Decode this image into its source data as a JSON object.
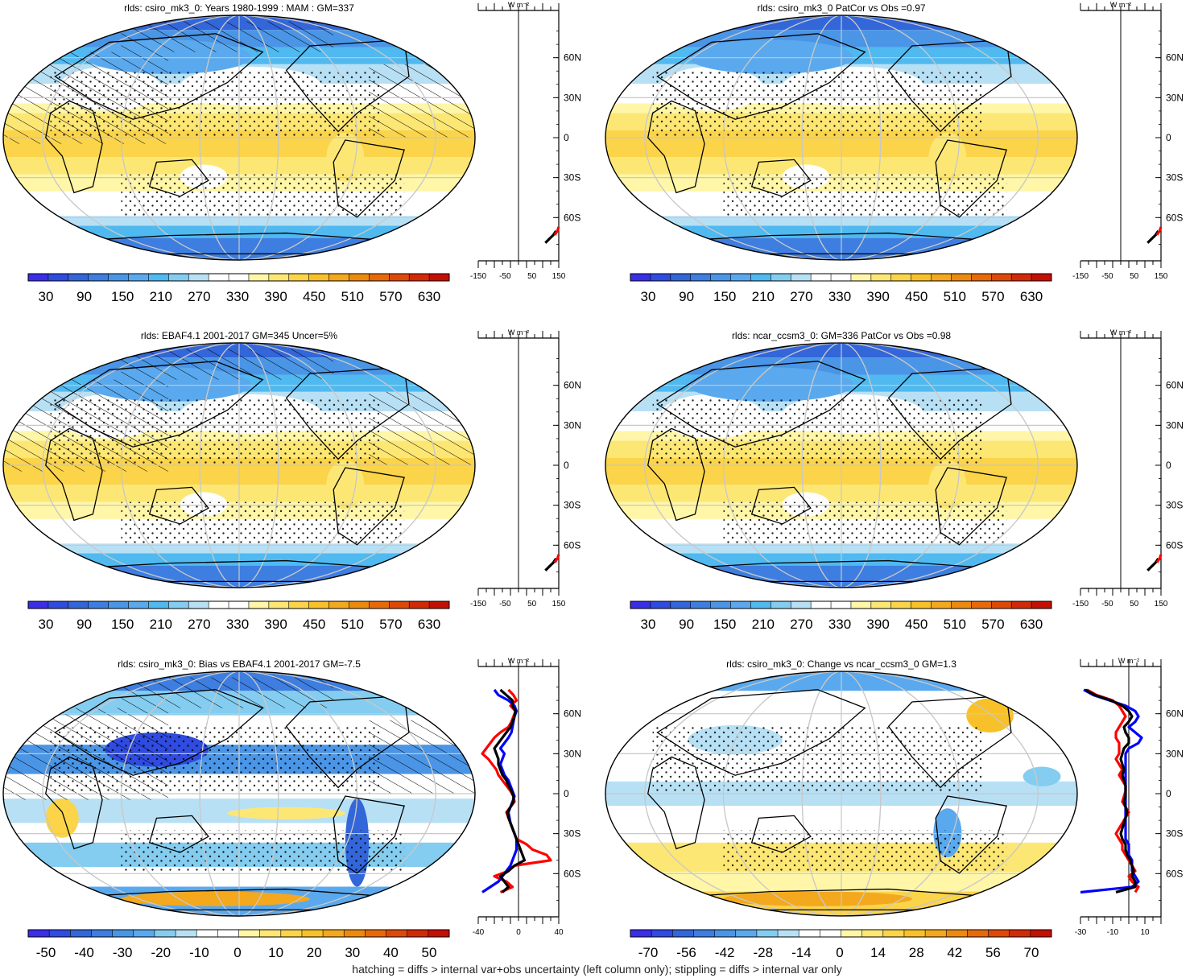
{
  "footer": "hatching = diffs > internal var+obs uncertainty (left column only); stippling = diffs > internal var only",
  "palettes": {
    "climatology": [
      "#3a2ee6",
      "#2f4be0",
      "#3366d9",
      "#3d7ee0",
      "#4a95e6",
      "#5aa9ee",
      "#4fb9f0",
      "#84cdf0",
      "#b8e0f5",
      "#ffffff",
      "#ffffff",
      "#fff6a8",
      "#fde774",
      "#fbd44a",
      "#f8c12a",
      "#f3a81d",
      "#ec8a10",
      "#e66a0a",
      "#dd4a08",
      "#d22a06",
      "#c41004"
    ],
    "difference": [
      "#3a2ee6",
      "#2f4be0",
      "#3366d9",
      "#3d7ee0",
      "#4a95e6",
      "#5aa9ee",
      "#84cdf0",
      "#b8e0f5",
      "#ffffff",
      "#ffffff",
      "#fff6a8",
      "#fde774",
      "#fbd44a",
      "#f8c12a",
      "#f3a81d",
      "#ec8a10",
      "#e66a0a",
      "#dd4a08",
      "#d22a06",
      "#c41004"
    ]
  },
  "chart_data": [
    {
      "type": "heatmap",
      "title": "rlds: csiro_mk3_0: Years 1980-1999 : MAM : GM=337",
      "colorbar_ticks": [
        "30",
        "90",
        "150",
        "210",
        "270",
        "330",
        "390",
        "450",
        "510",
        "570",
        "630"
      ],
      "palette": "climatology",
      "map_field": "climatology",
      "overlay": {
        "hatching": true,
        "stippling": true
      },
      "profile": {
        "unit_label": "W m⁻²",
        "x_ticks": [
          "-150",
          "-50",
          "50",
          "150"
        ],
        "xlim": [
          -150,
          150
        ],
        "lat_ticks": [
          "60N",
          "30N",
          "0",
          "30S",
          "60S"
        ],
        "lat_values": [
          60,
          30,
          0,
          -30,
          -60
        ],
        "series": [
          {
            "color": "#000000",
            "lat": [
              -79,
              -76,
              -73,
              -70
            ],
            "x": [
              100,
              115,
              130,
              140
            ]
          },
          {
            "color": "#ff0000",
            "lat": [
              -73,
              -70,
              -67
            ],
            "x": [
              135,
              145,
              150
            ]
          }
        ]
      }
    },
    {
      "type": "heatmap",
      "title": "rlds: csiro_mk3_0 PatCor vs Obs =0.97",
      "colorbar_ticks": [
        "30",
        "90",
        "150",
        "210",
        "270",
        "330",
        "390",
        "450",
        "510",
        "570",
        "630"
      ],
      "palette": "climatology",
      "map_field": "climatology",
      "overlay": {
        "hatching": false,
        "stippling": true
      },
      "profile": {
        "unit_label": "W m⁻²",
        "x_ticks": [
          "-150",
          "-50",
          "50",
          "150"
        ],
        "xlim": [
          -150,
          150
        ],
        "lat_ticks": [
          "60N",
          "30N",
          "0",
          "30S",
          "60S"
        ],
        "lat_values": [
          60,
          30,
          0,
          -30,
          -60
        ],
        "series": [
          {
            "color": "#000000",
            "lat": [
              -79,
              -76,
              -73,
              -70
            ],
            "x": [
              100,
              115,
              130,
              140
            ]
          },
          {
            "color": "#ff0000",
            "lat": [
              -73,
              -70,
              -67
            ],
            "x": [
              135,
              145,
              150
            ]
          }
        ]
      }
    },
    {
      "type": "heatmap",
      "title": "rlds: EBAF4.1 2001-2017 GM=345 Uncer=5%",
      "colorbar_ticks": [
        "30",
        "90",
        "150",
        "210",
        "270",
        "330",
        "390",
        "450",
        "510",
        "570",
        "630"
      ],
      "palette": "climatology",
      "map_field": "climatology",
      "overlay": {
        "hatching": true,
        "stippling": true
      },
      "profile": {
        "unit_label": "W m⁻²",
        "x_ticks": [
          "-150",
          "-50",
          "50",
          "150"
        ],
        "xlim": [
          -150,
          150
        ],
        "lat_ticks": [
          "60N",
          "30N",
          "0",
          "30S",
          "60S"
        ],
        "lat_values": [
          60,
          30,
          0,
          -30,
          -60
        ],
        "series": [
          {
            "color": "#000000",
            "lat": [
              -79,
              -76,
              -73,
              -70
            ],
            "x": [
              100,
              115,
              130,
              140
            ]
          },
          {
            "color": "#ff0000",
            "lat": [
              -73,
              -70,
              -67
            ],
            "x": [
              135,
              145,
              150
            ]
          }
        ]
      }
    },
    {
      "type": "heatmap",
      "title": "rlds: ncar_ccsm3_0: GM=336 PatCor vs Obs =0.98",
      "colorbar_ticks": [
        "30",
        "90",
        "150",
        "210",
        "270",
        "330",
        "390",
        "450",
        "510",
        "570",
        "630"
      ],
      "palette": "climatology",
      "map_field": "climatology",
      "overlay": {
        "hatching": false,
        "stippling": true
      },
      "profile": {
        "unit_label": "W m⁻²",
        "x_ticks": [
          "-150",
          "-50",
          "50",
          "150"
        ],
        "xlim": [
          -150,
          150
        ],
        "lat_ticks": [
          "60N",
          "30N",
          "0",
          "30S",
          "60S"
        ],
        "lat_values": [
          60,
          30,
          0,
          -30,
          -60
        ],
        "series": [
          {
            "color": "#000000",
            "lat": [
              -79,
              -76,
              -73,
              -70
            ],
            "x": [
              100,
              115,
              130,
              140
            ]
          },
          {
            "color": "#ff0000",
            "lat": [
              -73,
              -70,
              -67
            ],
            "x": [
              135,
              145,
              150
            ]
          }
        ]
      }
    },
    {
      "type": "heatmap",
      "title": "rlds: csiro_mk3_0: Bias vs EBAF4.1 2001-2017 GM=-7.5",
      "colorbar_ticks": [
        "-50",
        "-40",
        "-30",
        "-20",
        "-10",
        "0",
        "10",
        "20",
        "30",
        "40",
        "50"
      ],
      "palette": "difference",
      "map_field": "bias",
      "overlay": {
        "hatching": true,
        "stippling": true
      },
      "profile": {
        "unit_label": "W m⁻²",
        "x_ticks": [
          "-40",
          "0",
          "40"
        ],
        "xlim": [
          -40,
          40
        ],
        "lat_ticks": [
          "60N",
          "30N",
          "0",
          "30S",
          "60S"
        ],
        "lat_values": [
          60,
          30,
          0,
          -30,
          -60
        ],
        "series": [
          {
            "color": "#ff0000",
            "lat": [
              78,
              74,
              70,
              66,
              62,
              58,
              54,
              50,
              46,
              42,
              38,
              34,
              30,
              26,
              22,
              18,
              14,
              10,
              6,
              2,
              -2,
              -6,
              -10,
              -14,
              -18,
              -22,
              -26,
              -30,
              -34,
              -38,
              -42,
              -46,
              -50,
              -54,
              -58,
              -62,
              -66,
              -70,
              -74
            ],
            "x": [
              -10,
              -5,
              -2,
              -8,
              -3,
              -5,
              -7,
              -10,
              -18,
              -24,
              -28,
              -32,
              -36,
              -30,
              -26,
              -22,
              -20,
              -16,
              -12,
              -8,
              -5,
              -4,
              -8,
              -12,
              -10,
              -8,
              -6,
              -4,
              -2,
              8,
              14,
              28,
              32,
              -4,
              -10,
              -24,
              -12,
              -6,
              -18
            ]
          },
          {
            "color": "#0000ff",
            "lat": [
              78,
              74,
              70,
              66,
              62,
              58,
              54,
              50,
              46,
              42,
              38,
              34,
              30,
              26,
              22,
              18,
              14,
              10,
              6,
              2,
              -2,
              -6,
              -10,
              -14,
              -18,
              -22,
              -26,
              -30,
              -34,
              -38,
              -42,
              -46,
              -50,
              -54,
              -58,
              -62,
              -66,
              -70,
              -74
            ],
            "x": [
              -24,
              -20,
              -10,
              -4,
              -2,
              -4,
              -5,
              -6,
              -7,
              -10,
              -14,
              -18,
              -14,
              -16,
              -18,
              -16,
              -14,
              -10,
              -8,
              -6,
              -4,
              -6,
              -8,
              -10,
              -9,
              -8,
              -6,
              -4,
              -2,
              -2,
              -2,
              -4,
              -6,
              -8,
              -12,
              -16,
              -20,
              -28,
              -36
            ]
          },
          {
            "color": "#000000",
            "lat": [
              78,
              74,
              70,
              66,
              62,
              58,
              54,
              50,
              46,
              42,
              38,
              34,
              30,
              26,
              22,
              18,
              14,
              10,
              6,
              2,
              -2,
              -6,
              -10,
              -14,
              -18,
              -22,
              -26,
              -30,
              -34,
              -38,
              -42,
              -46,
              -50,
              -54,
              -58,
              -62,
              -66,
              -70,
              -74
            ],
            "x": [
              -18,
              -12,
              -6,
              -6,
              -3,
              -4,
              -6,
              -8,
              -12,
              -16,
              -20,
              -24,
              -22,
              -20,
              -20,
              -18,
              -16,
              -12,
              -10,
              -7,
              -5,
              -5,
              -8,
              -11,
              -10,
              -8,
              -6,
              -4,
              -2,
              0,
              2,
              4,
              6,
              -4,
              -10,
              -18,
              -14,
              -10,
              -16
            ]
          }
        ]
      }
    },
    {
      "type": "heatmap",
      "title": "rlds: csiro_mk3_0: Change vs ncar_ccsm3_0 GM=1.3",
      "colorbar_ticks": [
        "-70",
        "-56",
        "-42",
        "-28",
        "-14",
        "0",
        "14",
        "28",
        "42",
        "56",
        "70"
      ],
      "palette": "difference",
      "map_field": "change",
      "overlay": {
        "hatching": false,
        "stippling": true
      },
      "profile": {
        "unit_label": "W m⁻²",
        "x_ticks": [
          "-30",
          "-10",
          "10"
        ],
        "xlim": [
          -30,
          20
        ],
        "lat_ticks": [
          "60N",
          "30N",
          "0",
          "30S",
          "60S"
        ],
        "lat_values": [
          60,
          30,
          0,
          -30,
          -60
        ],
        "series": [
          {
            "color": "#ff0000",
            "lat": [
              78,
              74,
              70,
              66,
              62,
              58,
              54,
              50,
              46,
              42,
              38,
              34,
              30,
              26,
              22,
              18,
              14,
              10,
              6,
              2,
              -2,
              -6,
              -10,
              -14,
              -18,
              -22,
              -26,
              -30,
              -34,
              -38,
              -42,
              -46,
              -50,
              -54,
              -58,
              -62,
              -66,
              -70,
              -74
            ],
            "x": [
              -26,
              -20,
              -10,
              -6,
              -4,
              -2,
              -4,
              -6,
              -8,
              -8,
              -6,
              -6,
              -6,
              -8,
              -6,
              -4,
              -6,
              -4,
              -2,
              -2,
              -3,
              -4,
              -2,
              0,
              -2,
              -4,
              -6,
              -8,
              -6,
              -4,
              -4,
              -2,
              0,
              2,
              4,
              0,
              2,
              6,
              4
            ]
          },
          {
            "color": "#0000ff",
            "lat": [
              78,
              74,
              70,
              66,
              62,
              58,
              54,
              50,
              46,
              42,
              38,
              34,
              30,
              26,
              22,
              18,
              14,
              10,
              6,
              2,
              -2,
              -6,
              -10,
              -14,
              -18,
              -22,
              -26,
              -30,
              -34,
              -38,
              -42,
              -46,
              -50,
              -54,
              -58,
              -62,
              -66,
              -70,
              -74
            ],
            "x": [
              -28,
              -22,
              -12,
              -2,
              4,
              6,
              4,
              0,
              4,
              8,
              6,
              0,
              -2,
              -2,
              -2,
              -2,
              -2,
              -2,
              -2,
              -2,
              -2,
              -2,
              -2,
              -2,
              -2,
              -2,
              -2,
              -2,
              -2,
              0,
              0,
              0,
              2,
              2,
              2,
              4,
              6,
              2,
              -30
            ]
          },
          {
            "color": "#000000",
            "lat": [
              78,
              74,
              70,
              66,
              62,
              58,
              54,
              50,
              46,
              42,
              38,
              34,
              30,
              26,
              22,
              18,
              14,
              10,
              6,
              2,
              -2,
              -6,
              -10,
              -14,
              -18,
              -22,
              -26,
              -30,
              -34,
              -38,
              -42,
              -46,
              -50,
              -54,
              -58,
              -62,
              -66,
              -70,
              -74
            ],
            "x": [
              -27,
              -21,
              -11,
              -4,
              0,
              2,
              0,
              -3,
              -2,
              0,
              0,
              -3,
              -4,
              -5,
              -4,
              -3,
              -4,
              -3,
              -2,
              -2,
              -2,
              -3,
              -2,
              -1,
              -2,
              -3,
              -4,
              -5,
              -4,
              -2,
              -2,
              -1,
              1,
              2,
              3,
              2,
              4,
              4,
              -8
            ]
          }
        ]
      }
    }
  ]
}
